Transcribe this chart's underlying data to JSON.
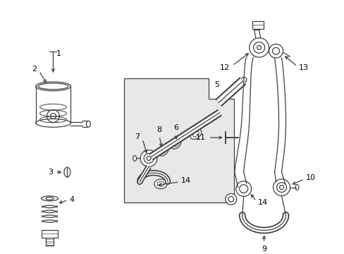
{
  "bg_color": "#ffffff",
  "line_color": "#404040",
  "label_color": "#000000",
  "fig_width": 4.89,
  "fig_height": 3.6
}
